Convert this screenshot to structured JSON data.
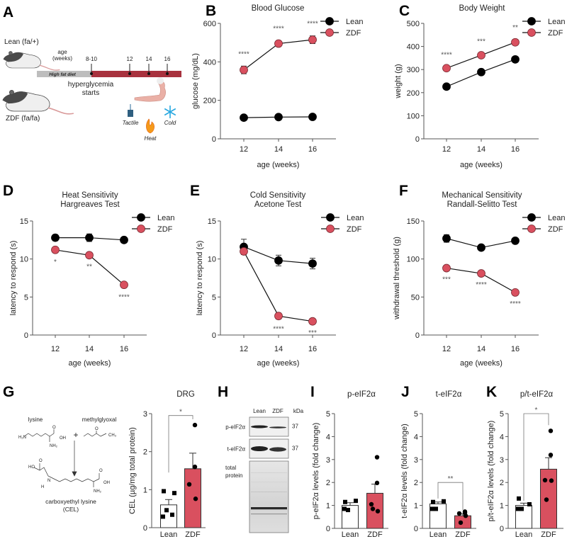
{
  "colors": {
    "lean": "#000000",
    "zdf": "#d9505f",
    "zdf_stroke": "#7a2a32",
    "axis": "#555555",
    "timeline_diet": "#bdbdbd",
    "timeline_hyper": "#a8323e"
  },
  "panel_letters": [
    "A",
    "B",
    "C",
    "D",
    "E",
    "F",
    "G",
    "H",
    "I",
    "J",
    "K"
  ],
  "legend": {
    "lean": "Lean",
    "zdf": "ZDF"
  },
  "schematic": {
    "lean_label": "Lean (fa/+)",
    "zdf_label": "ZDF (fa/fa)",
    "age_label_1": "age",
    "age_label_2": "(weeks)",
    "timepoints": [
      "8-10",
      "12",
      "14",
      "16"
    ],
    "diet_label": "High fat diet",
    "hyper_1": "hyperglycemia",
    "hyper_2": "starts",
    "tests": [
      "Tactile",
      "Heat",
      "Cold"
    ]
  },
  "chart_data": [
    {
      "id": "B",
      "type": "line",
      "title": [
        "Blood Glucose"
      ],
      "xlabel": "age (weeks)",
      "ylabel": "glucose (mg/dL)",
      "ylim": [
        0,
        600
      ],
      "yticks": [
        "0",
        "200",
        "400",
        "600"
      ],
      "x": [
        12,
        14,
        16
      ],
      "xticks": [
        "12",
        "14",
        "16"
      ],
      "series": [
        {
          "name": "Lean",
          "mean": [
            110,
            113,
            114
          ],
          "sem": [
            5,
            5,
            5
          ]
        },
        {
          "name": "ZDF",
          "mean": [
            358,
            495,
            515
          ],
          "sem": [
            20,
            15,
            20
          ]
        }
      ],
      "stars": [
        "****",
        "****",
        "****"
      ],
      "star_position": "above"
    },
    {
      "id": "C",
      "type": "line",
      "title": [
        "Body Weight"
      ],
      "xlabel": "age (weeks)",
      "ylabel": "weight (g)",
      "ylim": [
        0,
        500
      ],
      "yticks": [
        "0",
        "100",
        "200",
        "300",
        "400",
        "500"
      ],
      "x": [
        12,
        14,
        16
      ],
      "xticks": [
        "12",
        "14",
        "16"
      ],
      "series": [
        {
          "name": "Lean",
          "mean": [
            226,
            289,
            344
          ],
          "sem": [
            5,
            5,
            8
          ]
        },
        {
          "name": "ZDF",
          "mean": [
            306,
            362,
            418
          ],
          "sem": [
            5,
            8,
            12
          ]
        }
      ],
      "stars": [
        "****",
        "***",
        "**"
      ],
      "star_position": "above"
    },
    {
      "id": "D",
      "type": "line",
      "title": [
        "Heat Sensitivity",
        "Hargreaves Test"
      ],
      "xlabel": "age (weeks)",
      "ylabel": "latency to respond (s)",
      "ylim": [
        0,
        15
      ],
      "yticks": [
        "0",
        "5",
        "10",
        "15"
      ],
      "x": [
        12,
        14,
        16
      ],
      "xticks": [
        "12",
        "14",
        "16"
      ],
      "series": [
        {
          "name": "Lean",
          "mean": [
            12.8,
            12.8,
            12.5
          ],
          "sem": [
            0.4,
            0.5,
            0.2
          ]
        },
        {
          "name": "ZDF",
          "mean": [
            11.2,
            10.5,
            6.6
          ],
          "sem": [
            0.3,
            0.2,
            0.3
          ]
        }
      ],
      "stars": [
        "*",
        "**",
        "****"
      ],
      "star_position": "below"
    },
    {
      "id": "E",
      "type": "line",
      "title": [
        "Cold Sensitivity",
        "Acetone Test"
      ],
      "xlabel": "age (weeks)",
      "ylabel": "latency to respond (s)",
      "ylim": [
        0,
        15
      ],
      "yticks": [
        "0",
        "5",
        "10",
        "15"
      ],
      "x": [
        12,
        14,
        16
      ],
      "xticks": [
        "12",
        "14",
        "16"
      ],
      "series": [
        {
          "name": "Lean",
          "mean": [
            11.6,
            9.8,
            9.4
          ],
          "sem": [
            1.0,
            0.7,
            0.7
          ]
        },
        {
          "name": "ZDF",
          "mean": [
            11.0,
            2.5,
            1.8
          ],
          "sem": [
            0.4,
            0.4,
            0.2
          ]
        }
      ],
      "stars": [
        "",
        "****",
        "***"
      ],
      "star_position": "below"
    },
    {
      "id": "F",
      "type": "line",
      "title": [
        "Mechanical Sensitivity",
        "Randall-Selitto Test"
      ],
      "xlabel": "age (weeks)",
      "ylabel": "withdrawal threshold (g)",
      "ylim": [
        0,
        150
      ],
      "yticks": [
        "0",
        "50",
        "100",
        "150"
      ],
      "x": [
        12,
        14,
        16
      ],
      "xticks": [
        "12",
        "14",
        "16"
      ],
      "series": [
        {
          "name": "Lean",
          "mean": [
            127,
            115,
            124
          ],
          "sem": [
            5,
            2,
            3
          ]
        },
        {
          "name": "ZDF",
          "mean": [
            88,
            81,
            56
          ],
          "sem": [
            2,
            2,
            2
          ]
        }
      ],
      "stars": [
        "***",
        "****",
        "****"
      ],
      "star_position": "below"
    },
    {
      "id": "G",
      "type": "bar",
      "title": "DRG",
      "ylabel": "CEL (µg/mg total protein)",
      "ylim": [
        0,
        3
      ],
      "yticks": [
        "0",
        "1",
        "2",
        "3"
      ],
      "categories": [
        "Lean",
        "ZDF"
      ],
      "bars": [
        {
          "mean": 0.6,
          "sem": 0.14,
          "points": [
            0.96,
            0.91,
            0.46,
            0.29,
            0.34
          ]
        },
        {
          "mean": 1.55,
          "sem": 0.41,
          "points": [
            2.7,
            1.6,
            1.14,
            0.76
          ]
        }
      ],
      "bracket": {
        "level": 2.95,
        "left_end": 1.45,
        "right_end": 2.85,
        "label": "*"
      }
    },
    {
      "id": "I",
      "type": "bar",
      "title": "p-eIF2α",
      "ylabel": "p-eIF2α levels (fold change)",
      "ylim": [
        0,
        5
      ],
      "yticks": [
        "0",
        "1",
        "2",
        "3",
        "4",
        "5"
      ],
      "categories": [
        "Lean",
        "ZDF"
      ],
      "bars": [
        {
          "mean": 1.0,
          "sem": 0.12,
          "points": [
            1.15,
            1.2,
            0.8,
            0.85
          ]
        },
        {
          "mean": 1.53,
          "sem": 0.4,
          "points": [
            3.1,
            1.98,
            1.05,
            0.75,
            0.85
          ]
        }
      ],
      "bracket": null
    },
    {
      "id": "J",
      "type": "bar",
      "title": "t-eIF2α",
      "ylabel": "t-eIF2α levels (fold change)",
      "ylim": [
        0,
        5
      ],
      "yticks": [
        "0",
        "1",
        "2",
        "3",
        "4",
        "5"
      ],
      "categories": [
        "Lean",
        "ZDF"
      ],
      "bars": [
        {
          "mean": 1.07,
          "sem": 0.08,
          "points": [
            1.15,
            1.18,
            0.85,
            0.85
          ]
        },
        {
          "mean": 0.55,
          "sem": 0.08,
          "points": [
            0.73,
            0.68,
            0.65,
            0.55,
            0.25
          ]
        }
      ],
      "bracket": {
        "level": 2.0,
        "left_end": 1.3,
        "right_end": 0.8,
        "label": "**"
      }
    },
    {
      "id": "K",
      "type": "bar",
      "title": "p/t-eIF2α",
      "ylabel": "p/t-eIF2α levels (fold change)",
      "ylim": [
        0,
        5
      ],
      "yticks": [
        "0",
        "1",
        "2",
        "3",
        "4",
        "5"
      ],
      "categories": [
        "Lean",
        "ZDF"
      ],
      "bars": [
        {
          "mean": 1.0,
          "sem": 0.1,
          "points": [
            1.3,
            1.05,
            0.85,
            0.85
          ]
        },
        {
          "mean": 2.58,
          "sem": 0.5,
          "points": [
            4.25,
            3.2,
            2.1,
            2.08,
            1.25
          ]
        }
      ],
      "bracket": {
        "level": 5.0,
        "left_end": 1.2,
        "right_end": 4.5,
        "label": "*"
      }
    }
  ],
  "chemistry": {
    "lysine": "lysine",
    "methylglyoxal": "methylglyoxal",
    "plus": "+",
    "product_1": "carboxyethyl lysine",
    "product_2": "(CEL)",
    "atoms": [
      "H₂N",
      "O",
      "OH",
      "NH₂",
      "O",
      "CH₃",
      "O",
      "HO",
      "N",
      "H",
      "O",
      "OH",
      "NH₂"
    ]
  },
  "blot": {
    "lanes": [
      "Lean",
      "ZDF"
    ],
    "kda_label": "kDa",
    "rows": [
      {
        "label": "p-eIF2α",
        "kda": "37"
      },
      {
        "label": "t-eIF2α",
        "kda": "37"
      }
    ],
    "total_1": "total",
    "total_2": "protein"
  }
}
